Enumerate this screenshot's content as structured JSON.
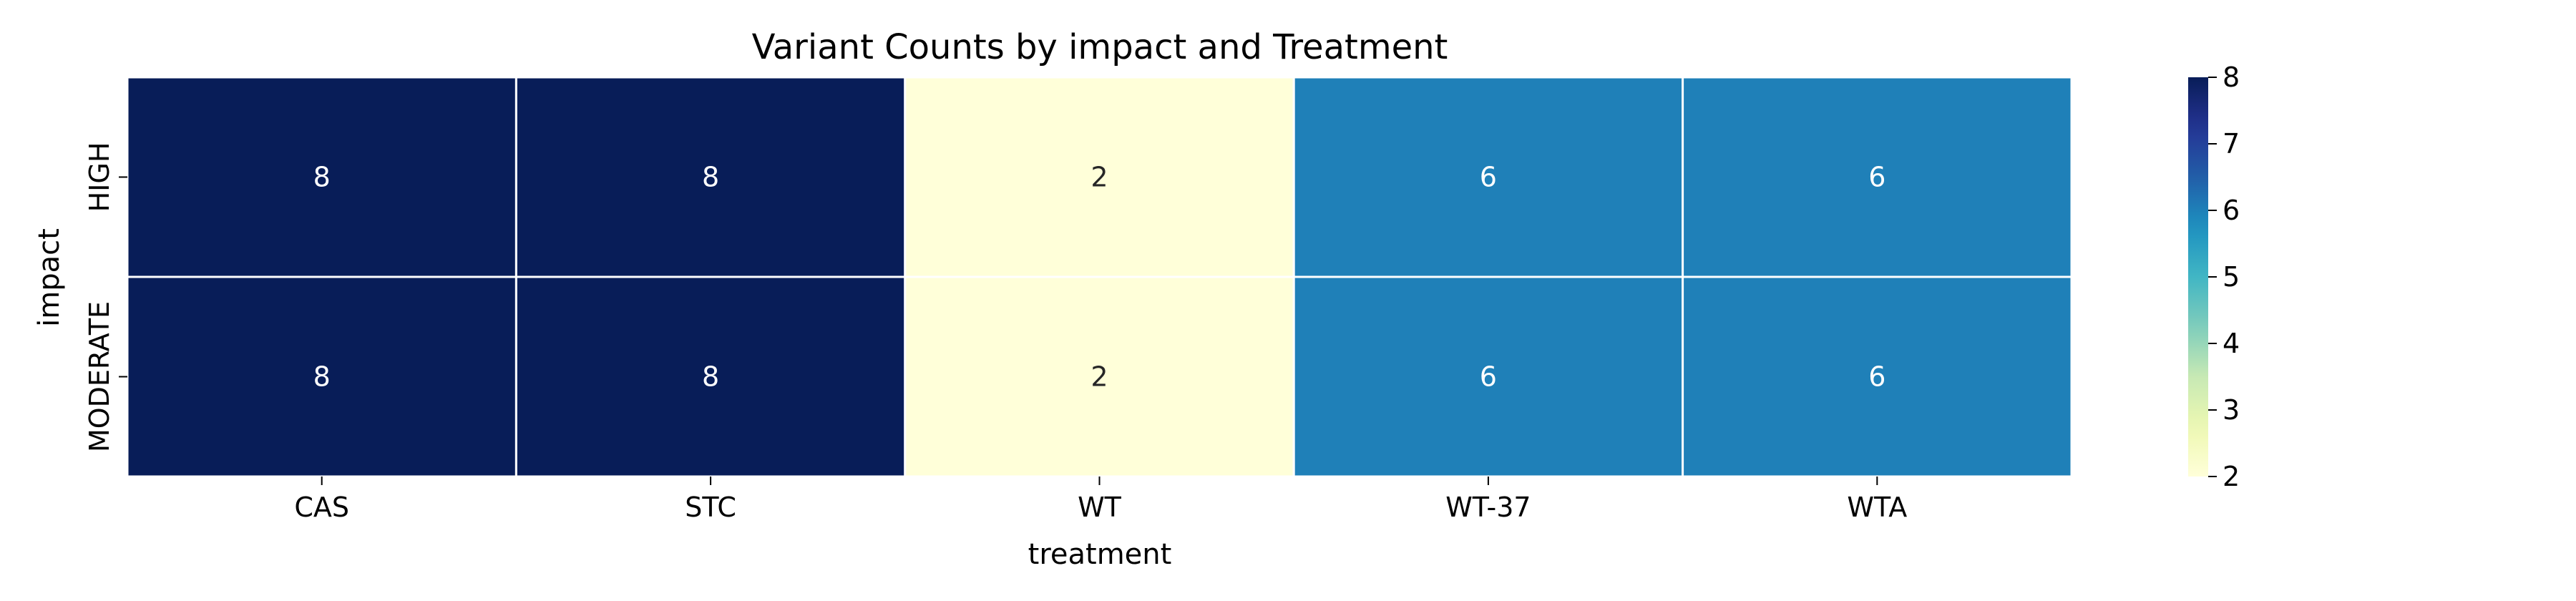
{
  "chart_data": {
    "type": "heatmap",
    "title": "Variant Counts by impact and Treatment",
    "xlabel": "treatment",
    "ylabel": "impact",
    "x_categories": [
      "CAS",
      "STC",
      "WT",
      "WT-37",
      "WTA"
    ],
    "y_categories": [
      "HIGH",
      "MODERATE"
    ],
    "values": [
      [
        8,
        8,
        2,
        6,
        6
      ],
      [
        8,
        8,
        2,
        6,
        6
      ]
    ],
    "colormap": "YlGnBu",
    "colorbar": {
      "range": [
        2,
        8
      ],
      "ticks": [
        2,
        3,
        4,
        5,
        6,
        7,
        8
      ]
    },
    "grid": false
  }
}
